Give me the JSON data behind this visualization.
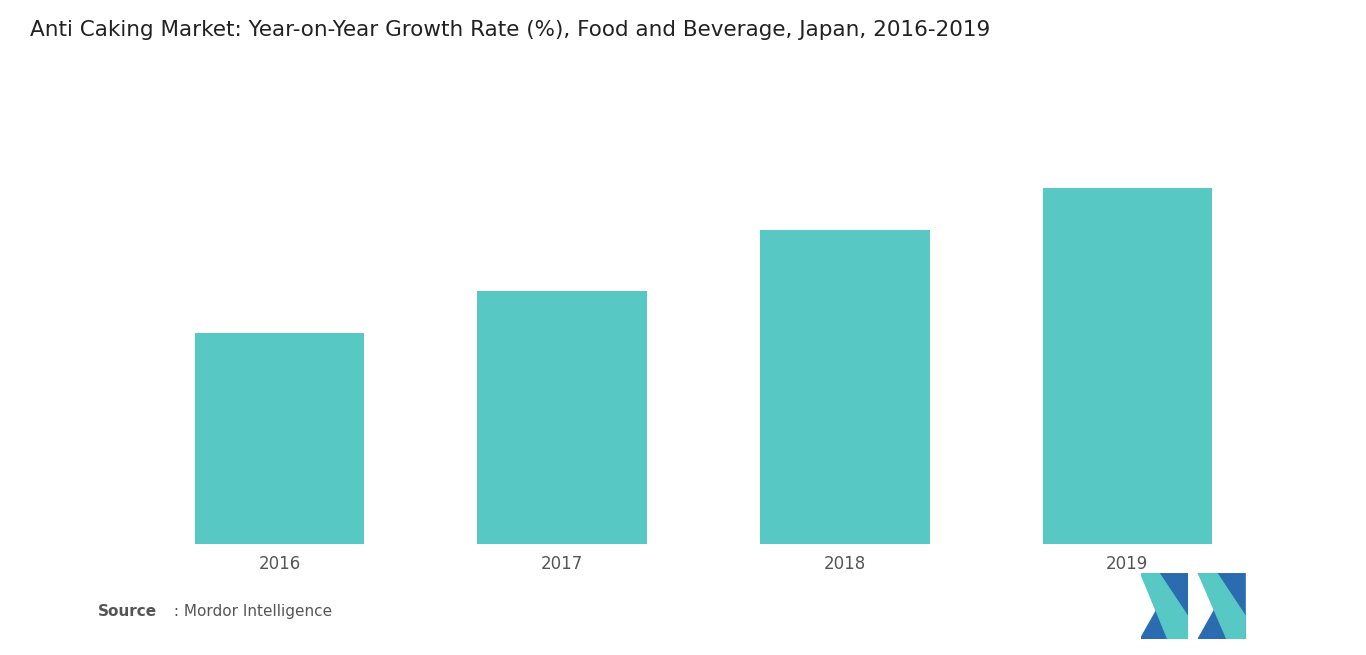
{
  "title": "Anti Caking Market: Year-on-Year Growth Rate (%), Food and Beverage, Japan, 2016-2019",
  "categories": [
    "2016",
    "2017",
    "2018",
    "2019"
  ],
  "values": [
    3.5,
    4.2,
    5.2,
    5.9
  ],
  "bar_color": "#57C8C4",
  "background_color": "#ffffff",
  "title_fontsize": 15.5,
  "tick_fontsize": 12,
  "ylim": [
    0,
    7.5
  ],
  "bar_width": 0.6,
  "logo_left_color": "#2B6CB0",
  "logo_right_color": "#57C8C4",
  "logo_dark_color": "#1a4f80",
  "source_bold_color": "#555555",
  "source_normal_color": "#555555",
  "tick_color": "#555555"
}
